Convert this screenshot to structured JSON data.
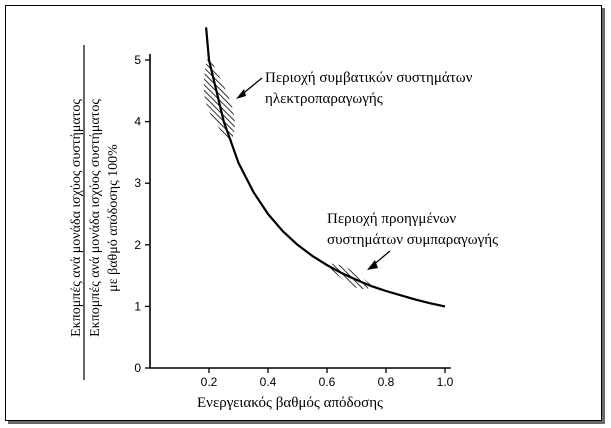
{
  "chart_data": {
    "type": "line",
    "xlabel": "Ενεργειακός βαθμός απόδοσης",
    "ylabel": {
      "numerator": "Εκπομπές ανά μονάδα ισχύος συστήματος",
      "denominator_line1": "Εκπομπές ανά μονάδα ισχύος συστήματος",
      "denominator_line2": "με βαθμό απόδοσης 100%"
    },
    "xlim": [
      0,
      1.0
    ],
    "ylim": [
      0,
      5
    ],
    "xticks": [
      {
        "value": 0.2,
        "label": "0.2"
      },
      {
        "value": 0.4,
        "label": "0.4"
      },
      {
        "value": 0.6,
        "label": "0.6"
      },
      {
        "value": 0.8,
        "label": "0.8"
      },
      {
        "value": 1.0,
        "label": "1.0"
      }
    ],
    "yticks": [
      {
        "value": 0,
        "label": "0"
      },
      {
        "value": 1,
        "label": "1"
      },
      {
        "value": 2,
        "label": "2"
      },
      {
        "value": 3,
        "label": "3"
      },
      {
        "value": 4,
        "label": "4"
      },
      {
        "value": 5,
        "label": "5"
      }
    ],
    "series": [
      {
        "x": [
          0.19,
          0.2,
          0.25,
          0.3,
          0.35,
          0.4,
          0.45,
          0.5,
          0.55,
          0.6,
          0.65,
          0.7,
          0.75,
          0.8,
          0.85,
          0.9,
          0.95,
          1.0
        ],
        "y": [
          5.53,
          5.0,
          4.0,
          3.33,
          2.86,
          2.5,
          2.22,
          2.0,
          1.82,
          1.67,
          1.54,
          1.43,
          1.33,
          1.25,
          1.18,
          1.11,
          1.05,
          1.0
        ]
      }
    ],
    "regions": [
      {
        "x_range": [
          0.2,
          0.29
        ],
        "label_line1": "Περιοχή συμβατικών συστημάτων",
        "label_line2": "ηλεκτροπαραγωγής"
      },
      {
        "x_range": [
          0.6,
          0.79
        ],
        "label_line1": "Περιοχή προηγμένων",
        "label_line2": "συστημάτων συμπαραγωγής"
      }
    ]
  }
}
